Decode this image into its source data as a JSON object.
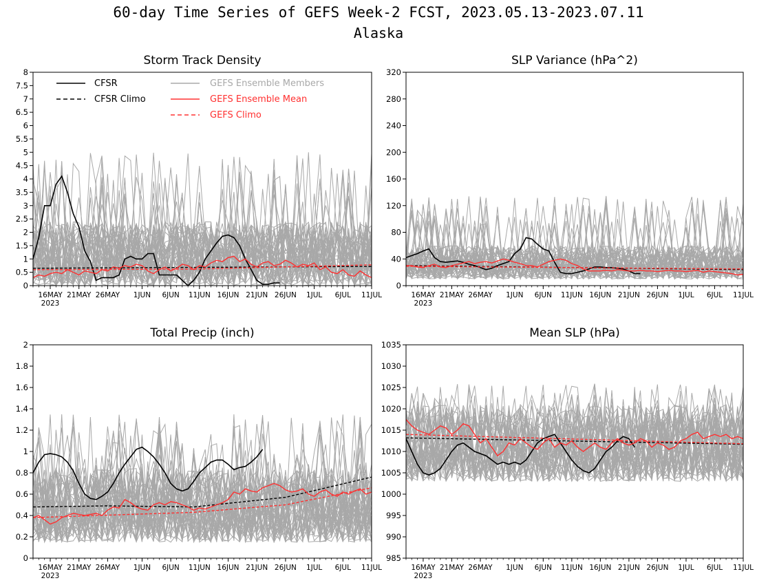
{
  "figure": {
    "title": "60-day Time Series of GEFS Week-2 FCST, 2023.05.13-2023.07.11",
    "subtitle": "Alaska"
  },
  "x_axis": {
    "range": [
      "2023-05-13",
      "2023-07-11"
    ],
    "ticks": [
      {
        "date": "2023-05-16",
        "label": "16MAY",
        "sublabel": "2023"
      },
      {
        "date": "2023-05-21",
        "label": "21MAY"
      },
      {
        "date": "2023-05-26",
        "label": "26MAY"
      },
      {
        "date": "2023-06-01",
        "label": "1JUN"
      },
      {
        "date": "2023-06-06",
        "label": "6JUN"
      },
      {
        "date": "2023-06-11",
        "label": "11JUN"
      },
      {
        "date": "2023-06-16",
        "label": "16JUN"
      },
      {
        "date": "2023-06-21",
        "label": "21JUN"
      },
      {
        "date": "2023-06-26",
        "label": "26JUN"
      },
      {
        "date": "2023-07-01",
        "label": "1JUL"
      },
      {
        "date": "2023-07-06",
        "label": "6JUL"
      },
      {
        "date": "2023-07-11",
        "label": "11JUL"
      }
    ]
  },
  "legend": {
    "placement": "top-left of first panel",
    "entries": [
      {
        "label": "CFSR",
        "color": "#000000",
        "style": "solid"
      },
      {
        "label": "CFSR Climo",
        "color": "#000000",
        "style": "dashed"
      },
      {
        "label": "GEFS Ensemble Members",
        "color": "#a8a8a8",
        "style": "solid"
      },
      {
        "label": "GEFS Ensemble Mean",
        "color": "#ff3030",
        "style": "solid"
      },
      {
        "label": "GEFS Climo",
        "color": "#ff3030",
        "style": "dashed"
      }
    ]
  },
  "colors": {
    "cfsr": "#000000",
    "members": "#a8a8a8",
    "gefs": "#ff3030"
  },
  "chart_data": [
    {
      "type": "line",
      "title": "Storm Track Density",
      "ylim": [
        0,
        8
      ],
      "yticks": [
        0,
        0.5,
        1,
        1.5,
        2,
        2.5,
        3,
        3.5,
        4,
        4.5,
        5,
        5.5,
        6,
        6.5,
        7,
        7.5,
        8
      ],
      "yticklabels": [
        "0",
        "0.5",
        "1",
        "1.5",
        "2",
        "2.5",
        "3",
        "3.5",
        "4",
        "4.5",
        "5",
        "5.5",
        "6",
        "6.5",
        "7",
        "7.5",
        "8"
      ],
      "members_envelope": {
        "low": 0.0,
        "high": 2.4,
        "peak_max": 5.0
      },
      "series": [
        {
          "name": "CFSR",
          "x": [
            "2023-05-13",
            "2023-05-14",
            "2023-05-15",
            "2023-05-16",
            "2023-05-17",
            "2023-05-18",
            "2023-05-19",
            "2023-05-20",
            "2023-05-21",
            "2023-05-22",
            "2023-05-23",
            "2023-05-24",
            "2023-05-25",
            "2023-05-26",
            "2023-05-27",
            "2023-05-28",
            "2023-05-29",
            "2023-05-30",
            "2023-05-31",
            "2023-06-01",
            "2023-06-02",
            "2023-06-03",
            "2023-06-04",
            "2023-06-05",
            "2023-06-06",
            "2023-06-07",
            "2023-06-08",
            "2023-06-09",
            "2023-06-10",
            "2023-06-11",
            "2023-06-12",
            "2023-06-13",
            "2023-06-14",
            "2023-06-15",
            "2023-06-16",
            "2023-06-17",
            "2023-06-18",
            "2023-06-19",
            "2023-06-20",
            "2023-06-21",
            "2023-06-22",
            "2023-06-23",
            "2023-06-24",
            "2023-06-25"
          ],
          "y": [
            1.0,
            1.8,
            3.0,
            3.0,
            3.8,
            4.1,
            3.5,
            2.7,
            2.2,
            1.3,
            0.9,
            0.2,
            0.3,
            0.3,
            0.3,
            0.4,
            1.0,
            1.1,
            1.0,
            1.0,
            1.2,
            1.2,
            0.4,
            0.4,
            0.4,
            0.4,
            0.2,
            0.0,
            0.2,
            0.5,
            1.0,
            1.3,
            1.6,
            1.85,
            1.9,
            1.8,
            1.5,
            1.0,
            0.6,
            0.2,
            0.05,
            0.05,
            0.1,
            0.1
          ]
        },
        {
          "name": "CFSR Climo",
          "x": [
            "2023-05-13",
            "2023-07-11"
          ],
          "y": [
            0.65,
            0.72
          ]
        },
        {
          "name": "GEFS Ensemble Mean",
          "x_start": "2023-05-13",
          "y": [
            0.3,
            0.4,
            0.35,
            0.45,
            0.5,
            0.45,
            0.6,
            0.5,
            0.4,
            0.55,
            0.5,
            0.45,
            0.6,
            0.55,
            0.7,
            0.65,
            0.75,
            0.7,
            0.8,
            0.75,
            0.55,
            0.45,
            0.6,
            0.7,
            0.55,
            0.65,
            0.8,
            0.75,
            0.6,
            0.75,
            0.7,
            0.85,
            0.95,
            0.9,
            1.05,
            1.1,
            0.9,
            1.0,
            0.8,
            0.7,
            0.85,
            0.9,
            0.75,
            0.8,
            0.95,
            0.85,
            0.7,
            0.8,
            0.75,
            0.85,
            0.6,
            0.7,
            0.5,
            0.45,
            0.6,
            0.4,
            0.35,
            0.55,
            0.4,
            0.3
          ]
        },
        {
          "name": "GEFS Climo",
          "x": [
            "2023-05-13",
            "2023-06-10",
            "2023-07-11"
          ],
          "y": [
            0.6,
            0.62,
            0.78
          ]
        }
      ]
    },
    {
      "type": "line",
      "title": "SLP Variance (hPa^2)",
      "ylim": [
        0,
        320
      ],
      "yticks": [
        0,
        40,
        80,
        120,
        160,
        200,
        240,
        280,
        320
      ],
      "yticklabels": [
        "0",
        "40",
        "80",
        "120",
        "160",
        "200",
        "240",
        "280",
        "320"
      ],
      "members_envelope": {
        "low": 10,
        "high": 60,
        "peak_max": 135
      },
      "series": [
        {
          "name": "CFSR",
          "x_start": "2023-05-13",
          "y": [
            42,
            45,
            48,
            52,
            55,
            42,
            36,
            35,
            36,
            37,
            35,
            32,
            30,
            27,
            24,
            26,
            30,
            33,
            36,
            48,
            55,
            72,
            70,
            62,
            55,
            52,
            35,
            20,
            18,
            18,
            20,
            22,
            25,
            28,
            28,
            27,
            27,
            26,
            25,
            22,
            18,
            18
          ]
        },
        {
          "name": "CFSR Climo",
          "x": [
            "2023-05-13",
            "2023-07-11"
          ],
          "y": [
            30,
            24
          ]
        },
        {
          "name": "GEFS Ensemble Mean",
          "x_start": "2023-05-13",
          "y": [
            30,
            30,
            28,
            27,
            30,
            32,
            28,
            27,
            30,
            32,
            34,
            36,
            33,
            35,
            36,
            34,
            37,
            40,
            38,
            35,
            33,
            30,
            30,
            28,
            32,
            36,
            38,
            40,
            38,
            33,
            30,
            25,
            22,
            22,
            22,
            23,
            22,
            24,
            23,
            22,
            22,
            23,
            22,
            22,
            21,
            22,
            23,
            22,
            22,
            21,
            22,
            23,
            20,
            22,
            21,
            20,
            19,
            18,
            16,
            17
          ]
        },
        {
          "name": "GEFS Climo",
          "x": [
            "2023-05-13",
            "2023-07-11"
          ],
          "y": [
            29,
            25
          ]
        }
      ]
    },
    {
      "type": "line",
      "title": "Total Precip (inch)",
      "ylim": [
        0,
        2
      ],
      "yticks": [
        0,
        0.2,
        0.4,
        0.6,
        0.8,
        1,
        1.2,
        1.4,
        1.6,
        1.8,
        2
      ],
      "yticklabels": [
        "0",
        "0.2",
        "0.4",
        "0.6",
        "0.8",
        "1",
        "1.2",
        "1.4",
        "1.6",
        "1.8",
        "2"
      ],
      "members_envelope": {
        "low": 0.15,
        "high": 0.85,
        "peak_max": 1.35
      },
      "series": [
        {
          "name": "CFSR",
          "x_start": "2023-05-13",
          "y": [
            0.8,
            0.9,
            0.97,
            0.98,
            0.97,
            0.95,
            0.9,
            0.82,
            0.7,
            0.6,
            0.56,
            0.55,
            0.58,
            0.62,
            0.7,
            0.8,
            0.88,
            0.95,
            1.02,
            1.04,
            1.0,
            0.95,
            0.88,
            0.8,
            0.7,
            0.65,
            0.63,
            0.65,
            0.72,
            0.8,
            0.85,
            0.9,
            0.92,
            0.92,
            0.88,
            0.83,
            0.85,
            0.86,
            0.9,
            0.95,
            1.02
          ]
        },
        {
          "name": "CFSR Climo",
          "x": [
            "2023-05-13",
            "2023-05-26",
            "2023-06-10",
            "2023-06-26",
            "2023-07-11"
          ],
          "y": [
            0.48,
            0.49,
            0.48,
            0.57,
            0.76
          ]
        },
        {
          "name": "GEFS Ensemble Mean",
          "x_start": "2023-05-13",
          "y": [
            0.38,
            0.4,
            0.36,
            0.32,
            0.34,
            0.38,
            0.4,
            0.42,
            0.41,
            0.4,
            0.41,
            0.42,
            0.4,
            0.45,
            0.48,
            0.47,
            0.55,
            0.52,
            0.48,
            0.46,
            0.45,
            0.5,
            0.52,
            0.5,
            0.53,
            0.52,
            0.5,
            0.48,
            0.45,
            0.47,
            0.46,
            0.48,
            0.5,
            0.52,
            0.55,
            0.62,
            0.6,
            0.65,
            0.63,
            0.62,
            0.66,
            0.68,
            0.7,
            0.68,
            0.64,
            0.62,
            0.63,
            0.65,
            0.6,
            0.58,
            0.62,
            0.64,
            0.6,
            0.58,
            0.62,
            0.6,
            0.63,
            0.65,
            0.6,
            0.62
          ]
        },
        {
          "name": "GEFS Climo",
          "x": [
            "2023-05-13",
            "2023-06-10",
            "2023-06-26",
            "2023-07-11"
          ],
          "y": [
            0.38,
            0.43,
            0.5,
            0.66
          ]
        }
      ]
    },
    {
      "type": "line",
      "title": "Mean SLP (hPa)",
      "ylim": [
        985,
        1035
      ],
      "yticks": [
        985,
        990,
        995,
        1000,
        1005,
        1010,
        1015,
        1020,
        1025,
        1030,
        1035
      ],
      "yticklabels": [
        "985",
        "990",
        "995",
        "1000",
        "1005",
        "1010",
        "1015",
        "1020",
        "1025",
        "1030",
        "1035"
      ],
      "members_envelope": {
        "low": 1003,
        "high": 1021,
        "peak_max": 1026
      },
      "series": [
        {
          "name": "CFSR",
          "x_start": "2023-05-13",
          "y": [
            1013,
            1010,
            1007,
            1005,
            1004.5,
            1005,
            1006,
            1008,
            1010,
            1011.5,
            1012,
            1011,
            1010,
            1009.5,
            1009,
            1008,
            1007,
            1007.5,
            1007,
            1007.5,
            1007,
            1008,
            1010,
            1012,
            1013,
            1013.5,
            1014,
            1012,
            1010,
            1008,
            1006.5,
            1005.5,
            1005,
            1006,
            1008,
            1010,
            1011,
            1012.5,
            1013.5,
            1013,
            1011
          ]
        },
        {
          "name": "CFSR Climo",
          "x": [
            "2023-05-13",
            "2023-07-11"
          ],
          "y": [
            1013.2,
            1011.7
          ]
        },
        {
          "name": "GEFS Ensemble Mean",
          "x_start": "2023-05-13",
          "y": [
            1017.5,
            1016,
            1015,
            1014.5,
            1014,
            1015,
            1016,
            1015.5,
            1014,
            1015,
            1016.5,
            1016,
            1014,
            1012,
            1013,
            1011,
            1009,
            1010,
            1012,
            1011.5,
            1013,
            1012,
            1011,
            1010.5,
            1012,
            1013,
            1011,
            1012,
            1011.5,
            1012.5,
            1011,
            1010,
            1011,
            1012,
            1011,
            1010.5,
            1012,
            1013,
            1012,
            1011.5,
            1012,
            1013,
            1012.5,
            1011,
            1012,
            1011.5,
            1010.5,
            1011,
            1012.5,
            1013,
            1014,
            1014.5,
            1013,
            1013.5,
            1014,
            1013.5,
            1014,
            1013,
            1013.5,
            1013
          ]
        },
        {
          "name": "GEFS Climo",
          "x": [
            "2023-05-13",
            "2023-07-11"
          ],
          "y": [
            1014,
            1011.8
          ]
        }
      ]
    }
  ]
}
